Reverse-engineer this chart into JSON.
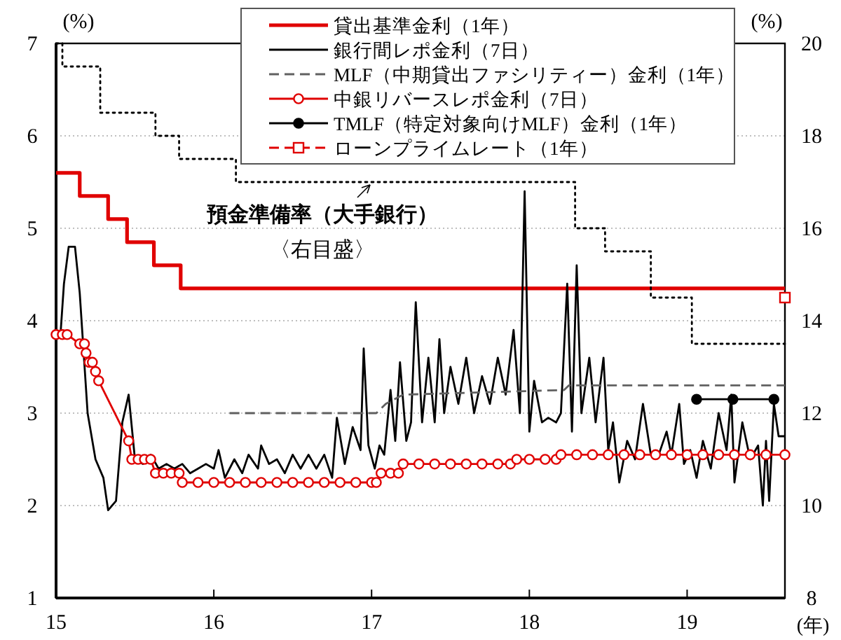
{
  "chart_data": {
    "type": "line",
    "xlabel": "(年)",
    "ylabel": "(%)",
    "y2label": "(%)",
    "xlim": [
      15,
      19.62
    ],
    "xticks": [
      15,
      16,
      17,
      18,
      19
    ],
    "ylim": [
      1,
      7
    ],
    "yticks": [
      1,
      2,
      3,
      4,
      5,
      6,
      7
    ],
    "y2lim": [
      8,
      20
    ],
    "y2ticks": [
      8,
      10,
      12,
      14,
      16,
      18,
      20
    ],
    "grid": "y",
    "legend": "top",
    "annotations": [
      "預金準備率（大手銀行）",
      "〈右目盛〉"
    ],
    "series": [
      {
        "name": "貸出基準金利（1年）",
        "color": "#e00000",
        "line_style": "solid",
        "marker": "none",
        "x": [
          15,
          15.15,
          15.15,
          15.33,
          15.33,
          15.45,
          15.45,
          15.62,
          15.62,
          15.79,
          15.79,
          19.62
        ],
        "values": [
          5.6,
          5.6,
          5.35,
          5.35,
          5.1,
          5.1,
          4.85,
          4.85,
          4.6,
          4.6,
          4.35,
          4.35
        ]
      },
      {
        "name": "銀行間レポ金利（7日）",
        "color": "#000000",
        "line_style": "solid",
        "marker": "none",
        "x": [
          15,
          15.03,
          15.05,
          15.08,
          15.12,
          15.15,
          15.2,
          15.25,
          15.3,
          15.33,
          15.38,
          15.42,
          15.46,
          15.5,
          15.55,
          15.6,
          15.65,
          15.7,
          15.75,
          15.8,
          15.85,
          15.9,
          15.95,
          16,
          16.03,
          16.07,
          16.13,
          16.18,
          16.22,
          16.28,
          16.3,
          16.35,
          16.4,
          16.45,
          16.5,
          16.55,
          16.6,
          16.65,
          16.7,
          16.75,
          16.78,
          16.83,
          16.88,
          16.93,
          16.95,
          16.98,
          17.02,
          17.05,
          17.08,
          17.12,
          17.15,
          17.18,
          17.22,
          17.25,
          17.28,
          17.32,
          17.36,
          17.4,
          17.43,
          17.46,
          17.5,
          17.55,
          17.6,
          17.65,
          17.7,
          17.75,
          17.8,
          17.85,
          17.9,
          17.94,
          17.97,
          18,
          18.03,
          18.08,
          18.12,
          18.17,
          18.2,
          18.24,
          18.27,
          18.3,
          18.33,
          18.38,
          18.42,
          18.47,
          18.5,
          18.53,
          18.57,
          18.62,
          18.67,
          18.72,
          18.77,
          18.82,
          18.87,
          18.9,
          18.95,
          18.98,
          19.02,
          19.06,
          19.1,
          19.15,
          19.2,
          19.25,
          19.28,
          19.3,
          19.35,
          19.4,
          19.45,
          19.48,
          19.5,
          19.52,
          19.55,
          19.58,
          19.62
        ],
        "values": [
          3.85,
          3.9,
          4.4,
          4.8,
          4.8,
          4.3,
          3.0,
          2.5,
          2.3,
          1.95,
          2.05,
          2.9,
          3.2,
          2.5,
          2.45,
          2.55,
          2.4,
          2.45,
          2.4,
          2.45,
          2.35,
          2.4,
          2.45,
          2.4,
          2.6,
          2.3,
          2.5,
          2.35,
          2.55,
          2.4,
          2.65,
          2.45,
          2.5,
          2.35,
          2.55,
          2.4,
          2.55,
          2.4,
          2.55,
          2.3,
          2.95,
          2.45,
          2.85,
          2.6,
          3.7,
          2.65,
          2.4,
          2.65,
          2.55,
          3.25,
          2.7,
          3.55,
          2.7,
          2.9,
          4.2,
          2.9,
          3.6,
          2.9,
          3.8,
          3.0,
          3.5,
          3.1,
          3.6,
          3.0,
          3.4,
          3.1,
          3.6,
          3.2,
          3.9,
          3.0,
          5.4,
          2.8,
          3.35,
          2.9,
          2.95,
          2.9,
          3.0,
          4.4,
          2.8,
          4.6,
          3.0,
          3.6,
          2.9,
          3.6,
          2.6,
          2.9,
          2.25,
          2.7,
          2.5,
          3.1,
          2.55,
          2.55,
          2.8,
          2.55,
          3.1,
          2.45,
          2.6,
          2.3,
          2.7,
          2.4,
          3.0,
          2.6,
          3.2,
          2.25,
          2.9,
          2.5,
          2.65,
          2.0,
          2.7,
          2.05,
          3.1,
          2.75,
          2.75
        ]
      },
      {
        "name": "MLF（中期貸出ファシリティー）金利（1年）",
        "color": "#606060",
        "line_style": "dashed",
        "marker": "none",
        "x": [
          16.1,
          17.03,
          17.09,
          17.2,
          18.22,
          18.25,
          19.62
        ],
        "values": [
          3.0,
          3.0,
          3.1,
          3.2,
          3.25,
          3.3,
          3.3
        ]
      },
      {
        "name": "中銀リバースレポ金利（7日）",
        "color": "#e00000",
        "line_style": "solid",
        "marker": "circle",
        "x": [
          15,
          15.04,
          15.07,
          15.15,
          15.18,
          15.19,
          15.21,
          15.23,
          15.25,
          15.27,
          15.46,
          15.48,
          15.52,
          15.56,
          15.6,
          15.63,
          15.68,
          15.73,
          15.78,
          15.8,
          15.9,
          16,
          16.1,
          16.2,
          16.3,
          16.4,
          16.5,
          16.6,
          16.7,
          16.8,
          16.9,
          17,
          17.03,
          17.06,
          17.12,
          17.17,
          17.2,
          17.3,
          17.4,
          17.5,
          17.6,
          17.7,
          17.8,
          17.88,
          17.92,
          18,
          18.1,
          18.17,
          18.2,
          18.3,
          18.4,
          18.5,
          18.6,
          18.7,
          18.8,
          18.9,
          19,
          19.1,
          19.2,
          19.3,
          19.4,
          19.5,
          19.62
        ],
        "values": [
          3.85,
          3.85,
          3.85,
          3.75,
          3.75,
          3.65,
          3.55,
          3.55,
          3.45,
          3.35,
          2.7,
          2.5,
          2.5,
          2.5,
          2.5,
          2.35,
          2.35,
          2.35,
          2.35,
          2.25,
          2.25,
          2.25,
          2.25,
          2.25,
          2.25,
          2.25,
          2.25,
          2.25,
          2.25,
          2.25,
          2.25,
          2.25,
          2.25,
          2.35,
          2.35,
          2.35,
          2.45,
          2.45,
          2.45,
          2.45,
          2.45,
          2.45,
          2.45,
          2.45,
          2.5,
          2.5,
          2.5,
          2.5,
          2.55,
          2.55,
          2.55,
          2.55,
          2.55,
          2.55,
          2.55,
          2.55,
          2.55,
          2.55,
          2.55,
          2.55,
          2.55,
          2.55,
          2.55
        ]
      },
      {
        "name": "TMLF（特定対象向けMLF）金利（1年）",
        "color": "#000000",
        "line_style": "solid",
        "marker": "circle",
        "x": [
          19.06,
          19.29,
          19.55
        ],
        "values": [
          3.15,
          3.15,
          3.15
        ]
      },
      {
        "name": "ローンプライムレート（1年）",
        "color": "#e00000",
        "line_style": "dashed",
        "marker": "square",
        "x": [
          19.62
        ],
        "values": [
          4.25
        ]
      },
      {
        "color": "#000000",
        "line_style": "dotted",
        "marker": "none",
        "axis": "y2",
        "x": [
          15,
          15.04,
          15.04,
          15.28,
          15.28,
          15.63,
          15.63,
          15.78,
          15.78,
          16.14,
          16.14,
          18.29,
          18.29,
          18.48,
          18.48,
          18.77,
          18.77,
          19.03,
          19.03,
          19.62
        ],
        "values": [
          20,
          20,
          19.5,
          19.5,
          18.5,
          18.5,
          18.0,
          18.0,
          17.5,
          17.5,
          17.0,
          17.0,
          16.0,
          16.0,
          15.5,
          15.5,
          14.5,
          14.5,
          13.5,
          13.5
        ]
      }
    ]
  }
}
